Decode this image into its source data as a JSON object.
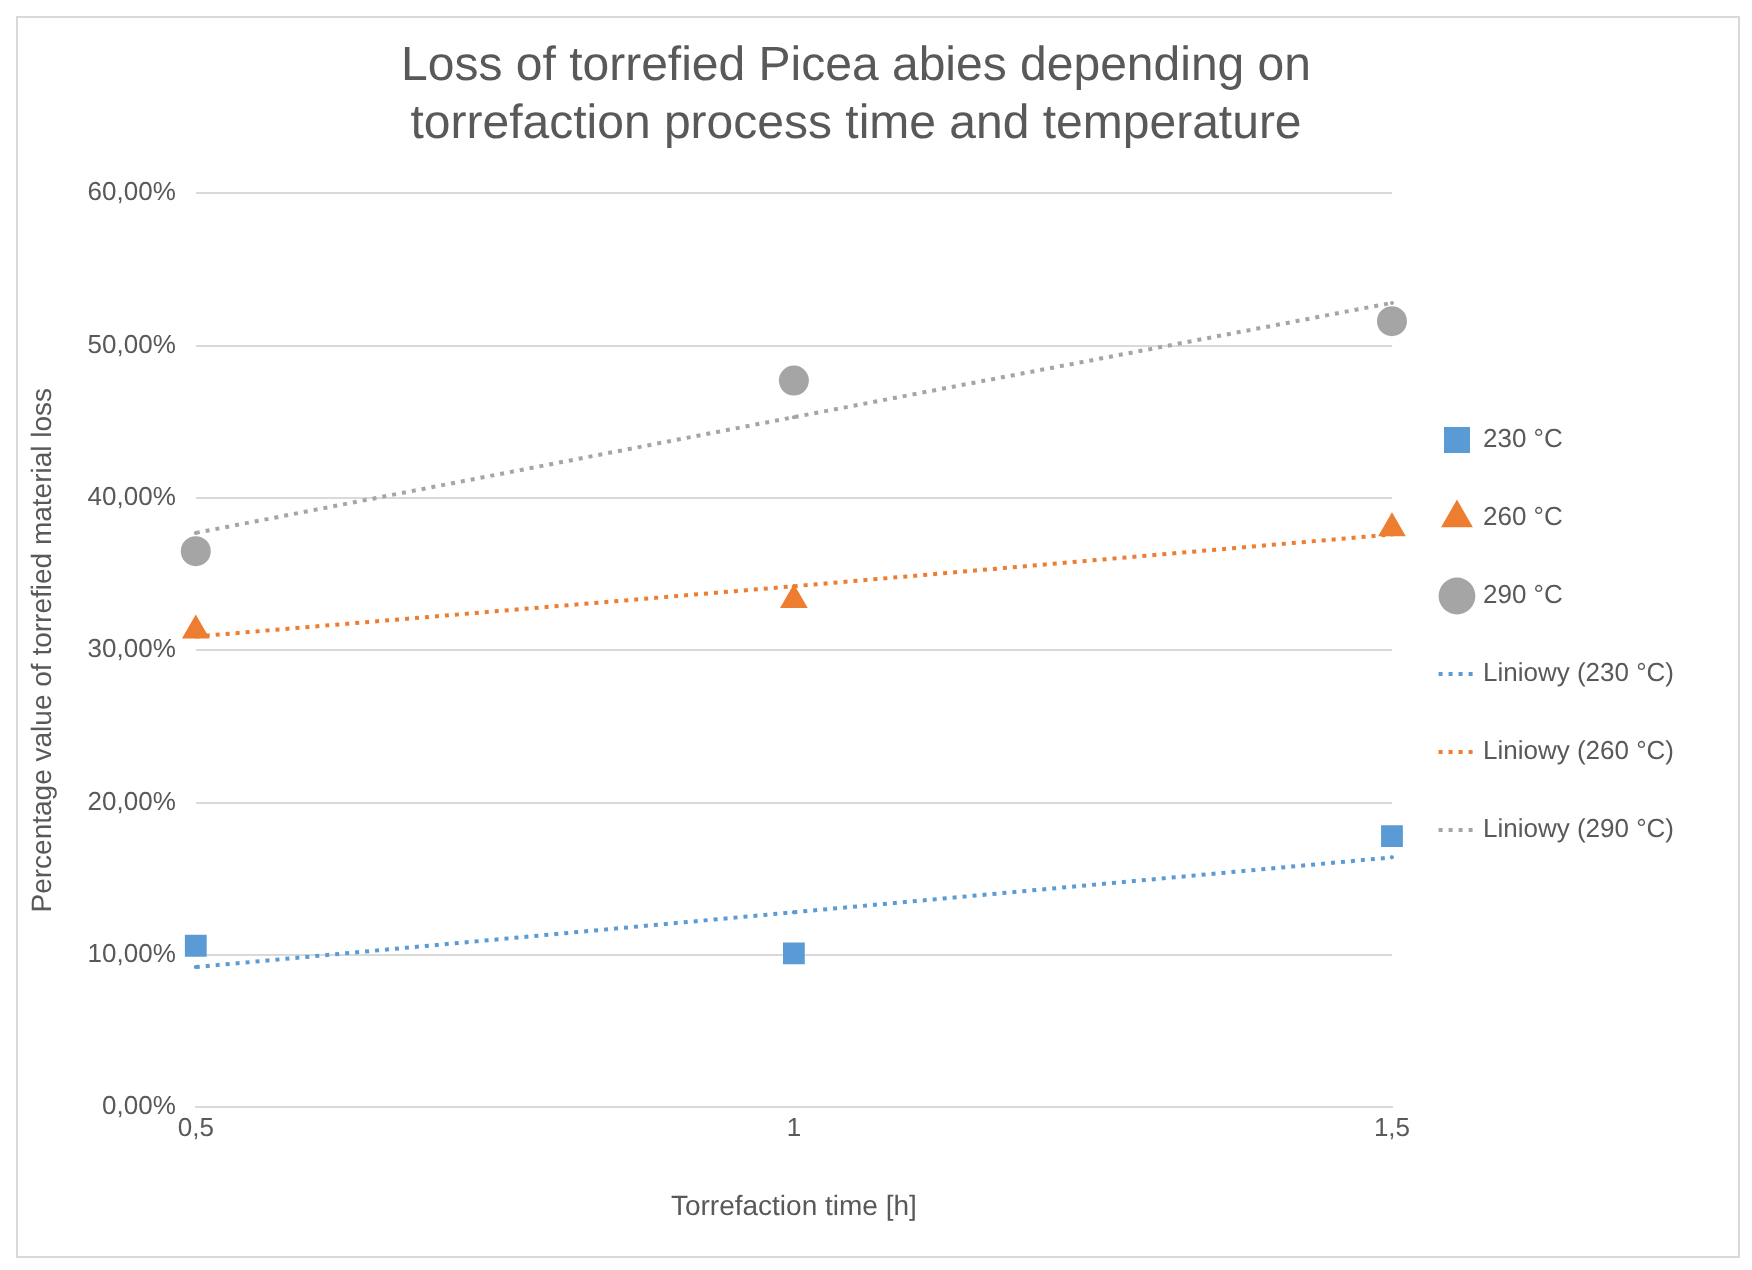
{
  "chart_data": {
    "type": "scatter",
    "title": "Loss of torrefied Picea abies depending on torrefaction process time and temperature",
    "xlabel": "Torrefaction time [h]",
    "ylabel": "Percentage value of torrefied material loss",
    "x": [
      0.5,
      1,
      1.5
    ],
    "series": [
      {
        "name": "230 °C",
        "color": "#5b9bd5",
        "marker": "square",
        "values": [
          10.6,
          10.1,
          17.8
        ]
      },
      {
        "name": "260 °C",
        "color": "#ed7d31",
        "marker": "triangle",
        "values": [
          31.3,
          33.3,
          38.0
        ]
      },
      {
        "name": "290 °C",
        "color": "#a5a5a5",
        "marker": "circle",
        "values": [
          36.5,
          47.7,
          51.6
        ]
      },
      {
        "name": "Liniowy (230 °C)",
        "type": "line",
        "line_style": "dotted",
        "marker": "none",
        "color": "#5b9bd5",
        "values": [
          9.2,
          12.8,
          16.4
        ]
      },
      {
        "name": "Liniowy (260 °C)",
        "type": "line",
        "line_style": "dotted",
        "marker": "none",
        "color": "#ed7d31",
        "values": [
          30.9,
          34.2,
          37.6
        ]
      },
      {
        "name": "Liniowy (290 °C)",
        "type": "line",
        "line_style": "dotted",
        "marker": "none",
        "color": "#a5a5a5",
        "values": [
          37.7,
          45.3,
          52.8
        ]
      }
    ],
    "xlim": [
      0.5,
      1.5
    ],
    "xticks": [
      {
        "value": 0.5,
        "label": "0,5"
      },
      1,
      {
        "value": 1.5,
        "label": "1,5"
      }
    ],
    "ylim": [
      0,
      60
    ],
    "yticks": [
      {
        "value": 0,
        "label": "0,00%"
      },
      {
        "value": 10,
        "label": "10,00%"
      },
      {
        "value": 20,
        "label": "20,00%"
      },
      {
        "value": 30,
        "label": "30,00%"
      },
      {
        "value": 40,
        "label": "40,00%"
      },
      {
        "value": 50,
        "label": "50,00%"
      },
      {
        "value": 60,
        "label": "60,00%"
      }
    ],
    "grid": "y",
    "legend": "right"
  }
}
